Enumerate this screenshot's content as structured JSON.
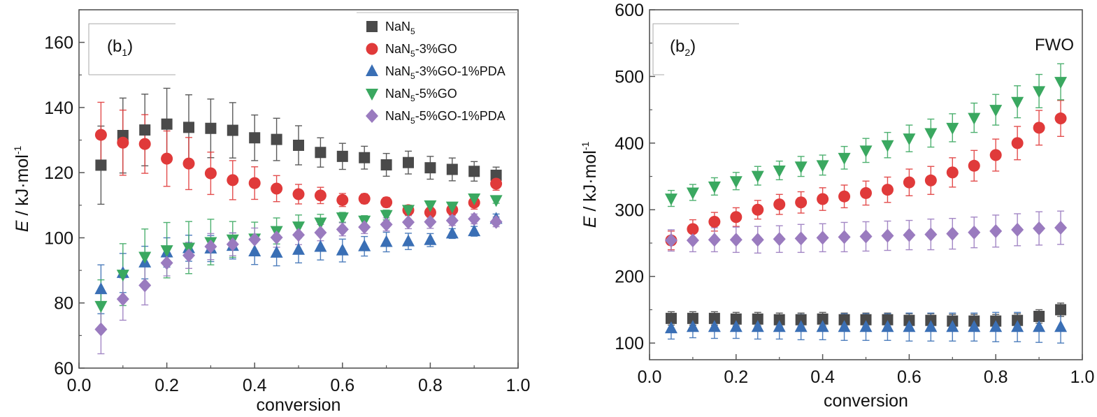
{
  "colors": {
    "NaN5": "#4a4a4a",
    "NaN5-3%GO": "#e03a3a",
    "NaN5-3%GO-1%PDA": "#3a6fb5",
    "NaN5-5%GO": "#3aa860",
    "NaN5-5%GO-1%PDA": "#9a7bbf"
  },
  "chart_data": [
    {
      "type": "scatter",
      "panel_label": "(b1)",
      "title": "",
      "xlabel": "conversion",
      "ylabel": "E / kJ·mol-1",
      "xlim": [
        0.0,
        1.0
      ],
      "ylim": [
        60,
        170
      ],
      "xticks": [
        "0.0",
        "0.2",
        "0.4",
        "0.6",
        "0.8",
        "1.0"
      ],
      "yticks": [
        "60",
        "80",
        "100",
        "120",
        "140",
        "160"
      ],
      "legend_placement": "top-right",
      "x": [
        0.05,
        0.1,
        0.15,
        0.2,
        0.25,
        0.3,
        0.35,
        0.4,
        0.45,
        0.5,
        0.55,
        0.6,
        0.65,
        0.7,
        0.75,
        0.8,
        0.85,
        0.9,
        0.95
      ],
      "series": [
        {
          "name": "NaN5",
          "marker": "square",
          "values": [
            122.3,
            131.4,
            133.1,
            134.9,
            133.9,
            133.6,
            133.0,
            130.7,
            130.2,
            128.4,
            126.2,
            125.0,
            124.6,
            122.4,
            123.1,
            121.5,
            121.0,
            120.4,
            119.2
          ],
          "errors": [
            12,
            11.5,
            11,
            11,
            10,
            9,
            8.5,
            7,
            6.5,
            6,
            4.5,
            4,
            3.5,
            3.5,
            3.5,
            3.5,
            3.5,
            3,
            2.5
          ]
        },
        {
          "name": "NaN5-3%GO",
          "marker": "circle",
          "values": [
            131.6,
            129.2,
            128.8,
            124.3,
            122.8,
            119.8,
            117.7,
            116.8,
            115.1,
            113.4,
            113.0,
            111.6,
            112.0,
            110.9,
            108.5,
            107.8,
            108.6,
            110.8,
            116.6
          ],
          "errors": [
            10,
            10,
            9,
            8.5,
            8,
            6.5,
            6,
            5,
            4,
            3,
            2.5,
            2,
            1.5,
            1.5,
            1.5,
            1.5,
            1.5,
            2,
            2
          ]
        },
        {
          "name": "NaN5-3%GO-1%PDA",
          "marker": "triangle-up",
          "values": [
            84.2,
            89.2,
            92.4,
            95.5,
            96.8,
            96.7,
            97.5,
            95.8,
            95.4,
            96.3,
            97.2,
            96.1,
            97.4,
            98.7,
            98.9,
            99.3,
            101.3,
            102.0,
            105.8
          ],
          "errors": [
            7.5,
            6,
            5,
            4.5,
            4,
            4,
            4,
            4,
            4,
            4,
            4,
            3.5,
            3,
            3,
            2.5,
            2,
            1.5,
            1.5,
            1.5
          ]
        },
        {
          "name": "NaN5-5%GO",
          "marker": "triangle-down",
          "values": [
            79.1,
            88.7,
            94.2,
            96.2,
            97.0,
            98.7,
            99.5,
            99.8,
            102.1,
            103.5,
            104.7,
            106.3,
            105.3,
            107.0,
            108.6,
            110.0,
            109.6,
            112.1,
            111.6
          ],
          "errors": [
            8,
            9.5,
            8.5,
            8.5,
            8,
            7,
            5.5,
            5,
            4,
            3.5,
            2.5,
            1.5,
            1.5,
            1.5,
            1,
            1,
            1,
            1,
            1
          ]
        },
        {
          "name": "NaN5-5%GO-1%PDA",
          "marker": "diamond",
          "values": [
            71.9,
            81.2,
            85.4,
            92.3,
            94.6,
            97.3,
            98.0,
            99.5,
            100.1,
            100.9,
            101.6,
            102.6,
            103.3,
            104.1,
            104.8,
            104.9,
            105.3,
            105.8,
            104.9
          ],
          "errors": [
            7.5,
            6.5,
            6,
            4,
            4,
            4,
            3.5,
            3.5,
            3,
            3,
            2.5,
            2,
            2,
            2,
            2,
            2,
            1.5,
            1.5,
            1.5
          ]
        }
      ]
    },
    {
      "type": "scatter",
      "panel_label": "(b2)",
      "annotation": "FWO",
      "title": "",
      "xlabel": "conversion",
      "ylabel": "E / kJ·mol-1",
      "xlim": [
        0.0,
        1.0
      ],
      "ylim": [
        75,
        600
      ],
      "xticks": [
        "0.0",
        "0.2",
        "0.4",
        "0.6",
        "0.8",
        "1.0"
      ],
      "yticks": [
        "100",
        "200",
        "300",
        "400",
        "500",
        "600"
      ],
      "x": [
        0.05,
        0.1,
        0.15,
        0.2,
        0.25,
        0.3,
        0.35,
        0.4,
        0.45,
        0.5,
        0.55,
        0.6,
        0.65,
        0.7,
        0.75,
        0.8,
        0.85,
        0.9,
        0.95
      ],
      "series": [
        {
          "name": "NaN5",
          "marker": "square",
          "values": [
            137,
            137,
            137,
            136,
            136,
            135,
            135,
            136,
            135,
            135,
            135,
            134,
            134,
            133,
            133,
            133,
            134,
            140,
            150
          ],
          "errors": [
            10,
            10,
            10,
            10,
            10,
            10,
            10,
            10,
            10,
            10,
            10,
            10,
            10,
            10,
            10,
            10,
            10,
            10,
            10
          ]
        },
        {
          "name": "NaN5-3%GO",
          "marker": "circle",
          "values": [
            254,
            271,
            282,
            289,
            300,
            308,
            311,
            316,
            320,
            325,
            330,
            341,
            344,
            356,
            366,
            382,
            400,
            423,
            437
          ],
          "errors": [
            14,
            14,
            14,
            14,
            14,
            15,
            16,
            17,
            17,
            18,
            19,
            20,
            21,
            22,
            23,
            24,
            25,
            26,
            27
          ]
        },
        {
          "name": "NaN5-3%GO-1%PDA",
          "marker": "triangle-up",
          "values": [
            122,
            124,
            124,
            124,
            124,
            124,
            124,
            124,
            124,
            124,
            124,
            124,
            124,
            124,
            124,
            124,
            124,
            124,
            124
          ],
          "errors": [
            16,
            16,
            17,
            17,
            18,
            18,
            19,
            19,
            20,
            20,
            20,
            21,
            21,
            21,
            21,
            22,
            22,
            23,
            24
          ]
        },
        {
          "name": "NaN5-5%GO",
          "marker": "triangle-down",
          "values": [
            317,
            326,
            335,
            343,
            351,
            359,
            365,
            367,
            378,
            389,
            397,
            407,
            415,
            423,
            438,
            450,
            462,
            478,
            492
          ],
          "errors": [
            12,
            12,
            13,
            13,
            14,
            14,
            15,
            15,
            17,
            18,
            19,
            20,
            21,
            21,
            22,
            23,
            24,
            25,
            27
          ]
        },
        {
          "name": "NaN5-5%GO-1%PDA",
          "marker": "diamond",
          "values": [
            254,
            254,
            255,
            255,
            255,
            256,
            257,
            258,
            259,
            260,
            261,
            262,
            263,
            264,
            266,
            268,
            270,
            272,
            273
          ],
          "errors": [
            16,
            17,
            18,
            19,
            20,
            20,
            21,
            21,
            22,
            22,
            22,
            22,
            23,
            23,
            23,
            24,
            24,
            25,
            25
          ]
        }
      ]
    }
  ]
}
